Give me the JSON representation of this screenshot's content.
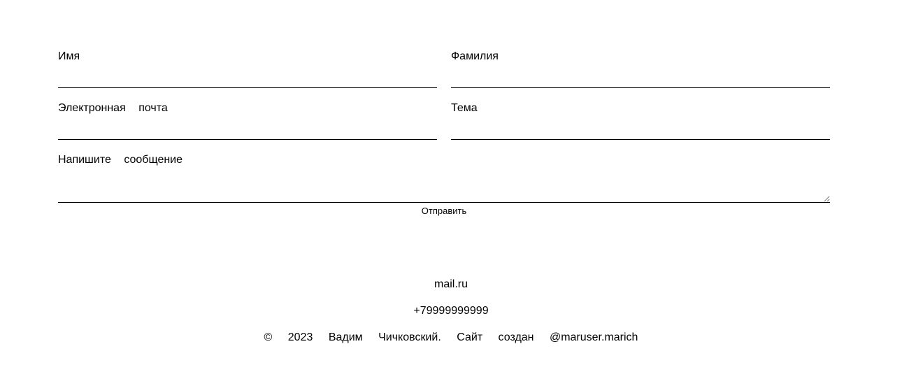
{
  "form": {
    "first_name_label": "Имя",
    "last_name_label": "Фамилия",
    "email_label": "Электронная почта",
    "subject_label": "Тема",
    "message_label": "Напишите сообщение",
    "submit_label": "Отправить",
    "first_name_value": "",
    "last_name_value": "",
    "email_value": "",
    "subject_value": "",
    "message_value": ""
  },
  "footer": {
    "email": "mail.ru",
    "phone": "+79999999999",
    "copyright": "© 2023 Вадим Чичковский. Сайт создан @maruser.marich"
  }
}
